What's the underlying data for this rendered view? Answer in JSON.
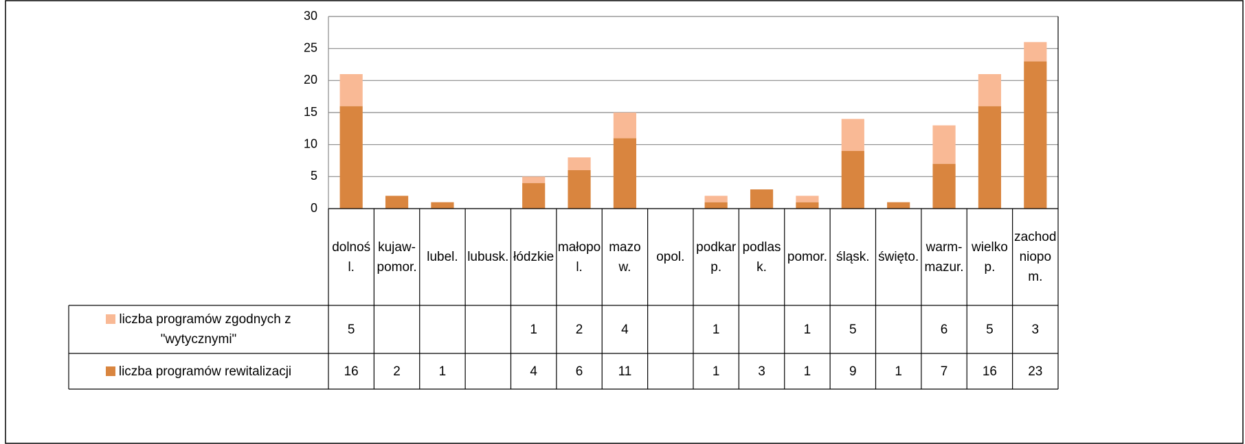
{
  "chart_data": {
    "type": "stacked-bar",
    "categories": [
      "dolnośl.",
      "kujaw-pomor.",
      "lubel.",
      "lubusk.",
      "łódzkie",
      "małopol.",
      "mazow.",
      "opol.",
      "podkarp.",
      "podlask.",
      "pomor.",
      "śląsk.",
      "święto.",
      "warm-mazur.",
      "wielkop.",
      "zachodniopom."
    ],
    "series": [
      {
        "name": "liczba programów zgodnych z \"wytycznymi\"",
        "color": "#f9b995",
        "values": [
          5,
          null,
          null,
          null,
          1,
          2,
          4,
          null,
          1,
          null,
          1,
          5,
          null,
          6,
          5,
          3
        ]
      },
      {
        "name": "liczba programów rewitalizacji",
        "color": "#d9853f",
        "values": [
          16,
          2,
          1,
          null,
          4,
          6,
          11,
          null,
          1,
          3,
          1,
          9,
          1,
          7,
          16,
          23
        ]
      }
    ],
    "ylim": [
      0,
      30
    ],
    "yticks": [
      0,
      5,
      10,
      15,
      20,
      25,
      30
    ],
    "grid": true,
    "data_table": true
  }
}
